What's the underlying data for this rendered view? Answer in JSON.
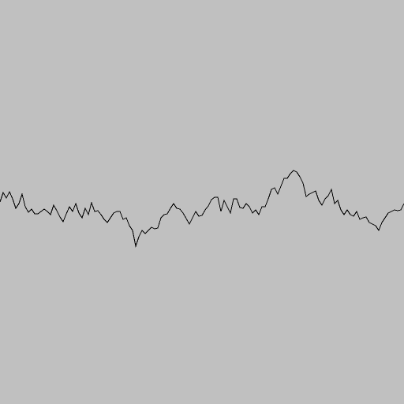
{
  "scene": {
    "background_color": "#c0c0c0",
    "line_color": "#000000",
    "profile": [
      [
        0,
        256
      ],
      [
        4,
        244
      ],
      [
        8,
        251
      ],
      [
        12,
        243
      ],
      [
        16,
        252
      ],
      [
        20,
        264
      ],
      [
        24,
        258
      ],
      [
        28,
        246
      ],
      [
        32,
        262
      ],
      [
        36,
        269
      ],
      [
        40,
        265
      ],
      [
        44,
        271
      ],
      [
        48,
        271
      ],
      [
        52,
        268
      ],
      [
        56,
        265
      ],
      [
        60,
        268
      ],
      [
        64,
        272
      ],
      [
        68,
        260
      ],
      [
        72,
        267
      ],
      [
        76,
        275
      ],
      [
        80,
        281
      ],
      [
        84,
        271
      ],
      [
        88,
        262
      ],
      [
        92,
        268
      ],
      [
        96,
        258
      ],
      [
        100,
        270
      ],
      [
        104,
        276
      ],
      [
        108,
        264
      ],
      [
        112,
        272
      ],
      [
        116,
        257
      ],
      [
        120,
        268
      ],
      [
        124,
        267
      ],
      [
        128,
        272
      ],
      [
        132,
        278
      ],
      [
        136,
        282
      ],
      [
        140,
        276
      ],
      [
        144,
        270
      ],
      [
        148,
        268
      ],
      [
        152,
        268
      ],
      [
        156,
        278
      ],
      [
        160,
        276
      ],
      [
        164,
        286
      ],
      [
        168,
        292
      ],
      [
        172,
        312
      ],
      [
        176,
        300
      ],
      [
        180,
        292
      ],
      [
        184,
        296
      ],
      [
        188,
        292
      ],
      [
        192,
        288
      ],
      [
        196,
        290
      ],
      [
        200,
        289
      ],
      [
        204,
        276
      ],
      [
        208,
        272
      ],
      [
        212,
        271
      ],
      [
        216,
        264
      ],
      [
        220,
        258
      ],
      [
        224,
        264
      ],
      [
        228,
        265
      ],
      [
        232,
        270
      ],
      [
        236,
        277
      ],
      [
        240,
        284
      ],
      [
        244,
        276
      ],
      [
        248,
        268
      ],
      [
        252,
        274
      ],
      [
        256,
        273
      ],
      [
        260,
        266
      ],
      [
        264,
        261
      ],
      [
        268,
        253
      ],
      [
        272,
        250
      ],
      [
        276,
        250
      ],
      [
        280,
        268
      ],
      [
        284,
        254
      ],
      [
        288,
        262
      ],
      [
        292,
        270
      ],
      [
        296,
        252
      ],
      [
        300,
        252
      ],
      [
        304,
        263
      ],
      [
        308,
        264
      ],
      [
        312,
        258
      ],
      [
        316,
        262
      ],
      [
        320,
        270
      ],
      [
        324,
        266
      ],
      [
        328,
        272
      ],
      [
        332,
        262
      ],
      [
        336,
        262
      ],
      [
        340,
        252
      ],
      [
        344,
        240
      ],
      [
        348,
        238
      ],
      [
        352,
        246
      ],
      [
        356,
        236
      ],
      [
        360,
        226
      ],
      [
        364,
        226
      ],
      [
        368,
        220
      ],
      [
        372,
        216
      ],
      [
        376,
        218
      ],
      [
        380,
        224
      ],
      [
        384,
        232
      ],
      [
        388,
        249
      ],
      [
        392,
        246
      ],
      [
        396,
        244
      ],
      [
        400,
        242
      ],
      [
        404,
        254
      ],
      [
        408,
        260
      ],
      [
        412,
        252
      ],
      [
        416,
        248
      ],
      [
        420,
        240
      ],
      [
        424,
        258
      ],
      [
        428,
        254
      ],
      [
        432,
        266
      ],
      [
        436,
        272
      ],
      [
        440,
        266
      ],
      [
        444,
        272
      ],
      [
        448,
        274
      ],
      [
        452,
        268
      ],
      [
        456,
        278
      ],
      [
        460,
        276
      ],
      [
        464,
        275
      ],
      [
        468,
        282
      ],
      [
        472,
        284
      ],
      [
        476,
        286
      ],
      [
        480,
        292
      ],
      [
        484,
        282
      ],
      [
        488,
        276
      ],
      [
        492,
        270
      ],
      [
        496,
        268
      ],
      [
        500,
        266
      ],
      [
        504,
        267
      ],
      [
        508,
        266
      ],
      [
        512,
        258
      ]
    ]
  }
}
